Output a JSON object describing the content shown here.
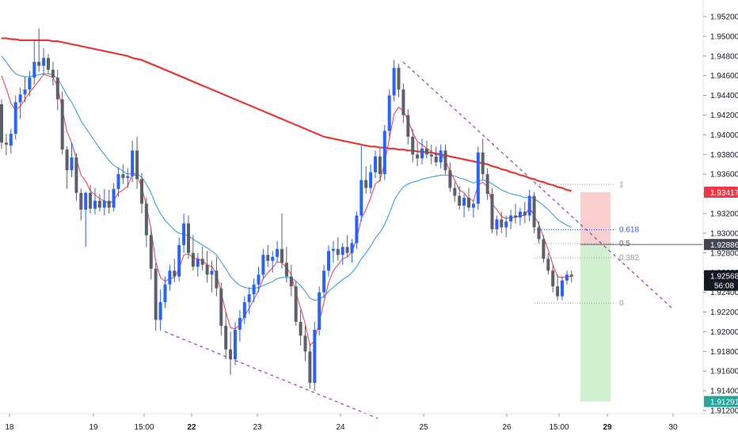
{
  "chart_data": {
    "type": "candlestick",
    "x_tick_labels": [
      "18",
      "19",
      "15:00",
      "22",
      "23",
      "24",
      "25",
      "26",
      "15:00",
      "29",
      "30"
    ],
    "x_tick_bold": [
      false,
      false,
      false,
      true,
      false,
      false,
      false,
      false,
      false,
      true,
      false
    ],
    "y_tick_labels": [
      "1.95200",
      "1.95000",
      "1.94800",
      "1.94600",
      "1.94400",
      "1.94200",
      "1.94000",
      "1.93800",
      "1.93600",
      "1.93400",
      "1.93200",
      "1.93000",
      "1.92800",
      "1.92600",
      "1.92400",
      "1.92200",
      "1.92000",
      "1.91800",
      "1.91600",
      "1.91400",
      "1.91200"
    ],
    "ylim": [
      1.9115,
      1.9535
    ],
    "grid": false,
    "colors": {
      "up": "#2962ff",
      "down": "#5d606b",
      "ma_fast": "#f23645",
      "ma_mid": "#2196f3",
      "ma_slow": "#f23645",
      "trendline": "#9c27b0",
      "risk_zone": "#f7c5c5",
      "reward_zone": "#c9edc7",
      "fib": "#9598a1",
      "fib_618": "#2962ff"
    },
    "candles_ohlc": [
      [
        1.9431,
        1.9436,
        1.9386,
        1.9392
      ],
      [
        1.9392,
        1.9401,
        1.9379,
        1.939
      ],
      [
        1.9389,
        1.9406,
        1.9381,
        1.9401
      ],
      [
        1.9401,
        1.944,
        1.9395,
        1.9433
      ],
      [
        1.9433,
        1.9448,
        1.9416,
        1.9441
      ],
      [
        1.9441,
        1.9459,
        1.9433,
        1.9446
      ],
      [
        1.9446,
        1.9465,
        1.9439,
        1.9458
      ],
      [
        1.9458,
        1.9495,
        1.9451,
        1.9474
      ],
      [
        1.9474,
        1.9508,
        1.9464,
        1.947
      ],
      [
        1.947,
        1.9488,
        1.9461,
        1.9478
      ],
      [
        1.9478,
        1.9482,
        1.9462,
        1.9466
      ],
      [
        1.9466,
        1.9474,
        1.945,
        1.9458
      ],
      [
        1.9458,
        1.9466,
        1.9425,
        1.9436
      ],
      [
        1.9436,
        1.9444,
        1.938,
        1.9385
      ],
      [
        1.9385,
        1.9388,
        1.9345,
        1.9364
      ],
      [
        1.9364,
        1.9392,
        1.9357,
        1.9377
      ],
      [
        1.9377,
        1.9381,
        1.9333,
        1.9341
      ],
      [
        1.9341,
        1.9345,
        1.9313,
        1.9324
      ],
      [
        1.9324,
        1.9342,
        1.9286,
        1.9341
      ],
      [
        1.9341,
        1.9349,
        1.932,
        1.9325
      ],
      [
        1.9325,
        1.9346,
        1.9319,
        1.9333
      ],
      [
        1.9333,
        1.934,
        1.9322,
        1.9326
      ],
      [
        1.9326,
        1.9345,
        1.9318,
        1.9333
      ],
      [
        1.9333,
        1.9344,
        1.932,
        1.9326
      ],
      [
        1.9326,
        1.9351,
        1.9322,
        1.9345
      ],
      [
        1.9345,
        1.9367,
        1.9337,
        1.936
      ],
      [
        1.936,
        1.937,
        1.935,
        1.9356
      ],
      [
        1.9356,
        1.9366,
        1.9346,
        1.9358
      ],
      [
        1.9358,
        1.9394,
        1.9352,
        1.9384
      ],
      [
        1.9384,
        1.9398,
        1.9345,
        1.9355
      ],
      [
        1.9355,
        1.9361,
        1.932,
        1.933
      ],
      [
        1.933,
        1.9336,
        1.9286,
        1.9298
      ],
      [
        1.9298,
        1.9305,
        1.9253,
        1.9264
      ],
      [
        1.9264,
        1.927,
        1.9201,
        1.9212
      ],
      [
        1.9212,
        1.9243,
        1.9201,
        1.923
      ],
      [
        1.923,
        1.9256,
        1.9224,
        1.9248
      ],
      [
        1.9248,
        1.9268,
        1.9242,
        1.9262
      ],
      [
        1.9262,
        1.9274,
        1.925,
        1.9256
      ],
      [
        1.9256,
        1.9296,
        1.9251,
        1.9288
      ],
      [
        1.9288,
        1.932,
        1.928,
        1.931
      ],
      [
        1.931,
        1.9318,
        1.9274,
        1.928
      ],
      [
        1.928,
        1.9298,
        1.9262,
        1.9266
      ],
      [
        1.9266,
        1.928,
        1.9256,
        1.9274
      ],
      [
        1.9274,
        1.9286,
        1.9262,
        1.9268
      ],
      [
        1.9268,
        1.9282,
        1.925,
        1.9258
      ],
      [
        1.9258,
        1.9272,
        1.924,
        1.9262
      ],
      [
        1.9262,
        1.9276,
        1.9236,
        1.9244
      ],
      [
        1.9244,
        1.925,
        1.9196,
        1.9206
      ],
      [
        1.9206,
        1.922,
        1.9172,
        1.9182
      ],
      [
        1.9182,
        1.92,
        1.9156,
        1.9172
      ],
      [
        1.9172,
        1.921,
        1.9166,
        1.9202
      ],
      [
        1.9202,
        1.9222,
        1.919,
        1.9214
      ],
      [
        1.9214,
        1.9236,
        1.9208,
        1.923
      ],
      [
        1.923,
        1.9245,
        1.9218,
        1.9238
      ],
      [
        1.9238,
        1.9254,
        1.923,
        1.9248
      ],
      [
        1.9248,
        1.9266,
        1.924,
        1.9258
      ],
      [
        1.9258,
        1.9284,
        1.9254,
        1.9278
      ],
      [
        1.9278,
        1.9288,
        1.9266,
        1.9272
      ],
      [
        1.9272,
        1.9282,
        1.926,
        1.9276
      ],
      [
        1.9276,
        1.9292,
        1.927,
        1.9284
      ],
      [
        1.9284,
        1.932,
        1.9264,
        1.927
      ],
      [
        1.927,
        1.9286,
        1.925,
        1.9256
      ],
      [
        1.9256,
        1.9268,
        1.9236,
        1.9246
      ],
      [
        1.9246,
        1.9252,
        1.9206,
        1.921
      ],
      [
        1.921,
        1.9222,
        1.9186,
        1.9196
      ],
      [
        1.9196,
        1.9206,
        1.917,
        1.918
      ],
      [
        1.918,
        1.9188,
        1.9142,
        1.9148
      ],
      [
        1.9148,
        1.921,
        1.914,
        1.9202
      ],
      [
        1.9202,
        1.9246,
        1.9196,
        1.924
      ],
      [
        1.924,
        1.9268,
        1.9234,
        1.9262
      ],
      [
        1.9262,
        1.9288,
        1.9256,
        1.9282
      ],
      [
        1.9282,
        1.9292,
        1.927,
        1.9284
      ],
      [
        1.9284,
        1.9296,
        1.9272,
        1.9278
      ],
      [
        1.9278,
        1.929,
        1.9268,
        1.9286
      ],
      [
        1.9286,
        1.9298,
        1.9276,
        1.928
      ],
      [
        1.928,
        1.9294,
        1.927,
        1.929
      ],
      [
        1.929,
        1.9322,
        1.9284,
        1.9318
      ],
      [
        1.9318,
        1.939,
        1.9312,
        1.9354
      ],
      [
        1.9354,
        1.9368,
        1.934,
        1.9346
      ],
      [
        1.9346,
        1.937,
        1.934,
        1.9362
      ],
      [
        1.9362,
        1.9384,
        1.9356,
        1.9378
      ],
      [
        1.9378,
        1.9386,
        1.9352,
        1.936
      ],
      [
        1.936,
        1.941,
        1.9354,
        1.9404
      ],
      [
        1.9404,
        1.9446,
        1.9398,
        1.944
      ],
      [
        1.944,
        1.9476,
        1.9434,
        1.9468
      ],
      [
        1.9468,
        1.9472,
        1.9438,
        1.9446
      ],
      [
        1.9446,
        1.9452,
        1.9412,
        1.942
      ],
      [
        1.942,
        1.9426,
        1.939,
        1.9398
      ],
      [
        1.9398,
        1.9406,
        1.9372,
        1.938
      ],
      [
        1.938,
        1.9392,
        1.9368,
        1.9376
      ],
      [
        1.9376,
        1.9396,
        1.937,
        1.9386
      ],
      [
        1.9386,
        1.9394,
        1.9376,
        1.938
      ],
      [
        1.938,
        1.939,
        1.937,
        1.9378
      ],
      [
        1.9378,
        1.9388,
        1.9368,
        1.9372
      ],
      [
        1.9372,
        1.939,
        1.9366,
        1.9384
      ],
      [
        1.9384,
        1.939,
        1.936,
        1.9364
      ],
      [
        1.9364,
        1.9372,
        1.9342,
        1.9346
      ],
      [
        1.9346,
        1.9352,
        1.9332,
        1.9338
      ],
      [
        1.9338,
        1.9348,
        1.9324,
        1.9328
      ],
      [
        1.9328,
        1.934,
        1.9316,
        1.9336
      ],
      [
        1.9336,
        1.9346,
        1.9322,
        1.9326
      ],
      [
        1.9326,
        1.9334,
        1.9316,
        1.933
      ],
      [
        1.933,
        1.9388,
        1.9324,
        1.9382
      ],
      [
        1.9382,
        1.9396,
        1.9354,
        1.936
      ],
      [
        1.936,
        1.9366,
        1.9334,
        1.934
      ],
      [
        1.934,
        1.9346,
        1.93,
        1.9304
      ],
      [
        1.9304,
        1.9318,
        1.9298,
        1.9314
      ],
      [
        1.9314,
        1.9322,
        1.93,
        1.9306
      ],
      [
        1.9306,
        1.9318,
        1.9296,
        1.9312
      ],
      [
        1.9312,
        1.9324,
        1.9304,
        1.9318
      ],
      [
        1.9318,
        1.933,
        1.931,
        1.9316
      ],
      [
        1.9316,
        1.9326,
        1.9308,
        1.9322
      ],
      [
        1.9322,
        1.9332,
        1.931,
        1.9318
      ],
      [
        1.9318,
        1.9344,
        1.9312,
        1.9338
      ],
      [
        1.9338,
        1.9342,
        1.93,
        1.9306
      ],
      [
        1.9306,
        1.9312,
        1.929,
        1.9294
      ],
      [
        1.9294,
        1.9298,
        1.927,
        1.9274
      ],
      [
        1.9274,
        1.928,
        1.9258,
        1.9262
      ],
      [
        1.9262,
        1.9268,
        1.924,
        1.9246
      ],
      [
        1.9246,
        1.9258,
        1.9232,
        1.9236
      ],
      [
        1.9236,
        1.9256,
        1.9232,
        1.9252
      ],
      [
        1.9252,
        1.9262,
        1.9248,
        1.9258
      ],
      [
        1.9258,
        1.9262,
        1.925,
        1.9256
      ]
    ],
    "ma_fast": [
      1.946,
      1.9447,
      1.9432,
      1.9425,
      1.9429,
      1.9436,
      1.9443,
      1.9449,
      1.9455,
      1.9461,
      1.946,
      1.9458,
      1.9449,
      1.9426,
      1.9403,
      1.9392,
      1.9376,
      1.9359,
      1.9353,
      1.9343,
      1.9339,
      1.9335,
      1.9333,
      1.933,
      1.9333,
      1.9341,
      1.9344,
      1.9348,
      1.936,
      1.9358,
      1.9347,
      1.9328,
      1.9304,
      1.9271,
      1.9255,
      1.9251,
      1.9254,
      1.9255,
      1.9264,
      1.9278,
      1.9279,
      1.9275,
      1.9274,
      1.9272,
      1.9268,
      1.9266,
      1.9259,
      1.924,
      1.922,
      1.9204,
      1.9203,
      1.9207,
      1.9216,
      1.9224,
      1.9233,
      1.9242,
      1.9254,
      1.926,
      1.9265,
      1.9271,
      1.927,
      1.9265,
      1.9258,
      1.924,
      1.9224,
      1.9208,
      1.9186,
      1.9191,
      1.921,
      1.923,
      1.925,
      1.9262,
      1.9268,
      1.9274,
      1.9276,
      1.9281,
      1.9294,
      1.9315,
      1.9324,
      1.9336,
      1.935,
      1.9354,
      1.9372,
      1.9396,
      1.9421,
      1.9428,
      1.9424,
      1.9415,
      1.9402,
      1.9393,
      1.939,
      1.9386,
      1.9383,
      1.9379,
      1.9381,
      1.9374,
      1.9363,
      1.9354,
      1.9344,
      1.9341,
      1.9335,
      1.9333,
      1.9349,
      1.9352,
      1.9347,
      1.933,
      1.9324,
      1.9317,
      1.9315,
      1.9316,
      1.9316,
      1.9318,
      1.9318,
      1.9326,
      1.9318,
      1.9309,
      1.9296,
      1.9283,
      1.9268,
      1.9256,
      1.9255,
      1.9256,
      1.9256
    ],
    "ma_mid": [
      1.948,
      1.9474,
      1.9467,
      1.9462,
      1.946,
      1.9459,
      1.9459,
      1.946,
      1.9461,
      1.9462,
      1.9462,
      1.9461,
      1.9457,
      1.9449,
      1.944,
      1.9433,
      1.9424,
      1.9414,
      1.9407,
      1.94,
      1.9393,
      1.9386,
      1.938,
      1.9374,
      1.9369,
      1.9366,
      1.9363,
      1.936,
      1.9361,
      1.936,
      1.9357,
      1.935,
      1.9341,
      1.9329,
      1.932,
      1.9313,
      1.9308,
      1.9303,
      1.93,
      1.9299,
      1.9297,
      1.9294,
      1.9291,
      1.9288,
      1.9285,
      1.9282,
      1.9278,
      1.9271,
      1.9264,
      1.9256,
      1.9251,
      1.9247,
      1.9245,
      1.9244,
      1.9244,
      1.9245,
      1.9247,
      1.9249,
      1.9251,
      1.9254,
      1.9255,
      1.9255,
      1.9255,
      1.9251,
      1.9247,
      1.9241,
      1.9234,
      1.9232,
      1.9233,
      1.9236,
      1.9241,
      1.9245,
      1.9249,
      1.9253,
      1.9256,
      1.926,
      1.9266,
      1.9274,
      1.928,
      1.9287,
      1.9295,
      1.9301,
      1.9309,
      1.932,
      1.9333,
      1.9341,
      1.9347,
      1.935,
      1.9352,
      1.9353,
      1.9355,
      1.9356,
      1.9357,
      1.9358,
      1.9359,
      1.9359,
      1.9359,
      1.9358,
      1.9356,
      1.9355,
      1.9353,
      1.9351,
      1.9353,
      1.9354,
      1.9353,
      1.935,
      1.9347,
      1.9344,
      1.9342,
      1.934,
      1.9339,
      1.9338,
      1.9336,
      1.9337,
      1.9335,
      1.9332,
      1.9328,
      1.9324,
      1.9319,
      1.9314,
      1.9311,
      1.9308,
      1.9306
    ],
    "ma_slow": [
      1.9498,
      1.9498,
      1.9497,
      1.9497,
      1.9496,
      1.9496,
      1.9496,
      1.9496,
      1.9496,
      1.9496,
      1.9496,
      1.9495,
      1.9495,
      1.9494,
      1.9493,
      1.9492,
      1.9491,
      1.949,
      1.9489,
      1.9488,
      1.9487,
      1.9486,
      1.9485,
      1.9484,
      1.9483,
      1.9482,
      1.9481,
      1.948,
      1.9478,
      1.9477,
      1.9476,
      1.9474,
      1.9472,
      1.947,
      1.9468,
      1.9466,
      1.9464,
      1.9462,
      1.946,
      1.9458,
      1.9456,
      1.9454,
      1.9452,
      1.945,
      1.9448,
      1.9446,
      1.9444,
      1.9442,
      1.944,
      1.9438,
      1.9436,
      1.9434,
      1.9432,
      1.943,
      1.9428,
      1.9426,
      1.9424,
      1.9422,
      1.942,
      1.9418,
      1.9416,
      1.9414,
      1.9412,
      1.941,
      1.9408,
      1.9406,
      1.9404,
      1.9402,
      1.94,
      1.9398,
      1.9397,
      1.9396,
      1.9395,
      1.9394,
      1.9393,
      1.9392,
      1.9391,
      1.939,
      1.9389,
      1.9388,
      1.9388,
      1.9387,
      1.9387,
      1.9386,
      1.9386,
      1.9385,
      1.9385,
      1.9384,
      1.9384,
      1.9383,
      1.9383,
      1.9382,
      1.9382,
      1.9381,
      1.938,
      1.9379,
      1.9378,
      1.9377,
      1.9376,
      1.9375,
      1.9374,
      1.9373,
      1.9372,
      1.9371,
      1.937,
      1.9368,
      1.9367,
      1.9365,
      1.9364,
      1.9362,
      1.9361,
      1.9359,
      1.9358,
      1.9356,
      1.9355,
      1.9353,
      1.9352,
      1.935,
      1.9349,
      1.9347,
      1.9346,
      1.9344,
      1.9343
    ],
    "trendlines": [
      {
        "from": [
          1.9474,
          101
        ],
        "to": [
          1.9223,
          170
        ],
        "from_idx": 85,
        "to_idx": 142
      },
      {
        "from": [
          1.92,
          35
        ],
        "to": [
          1.9112,
          78
        ],
        "from_idx": 33,
        "to_idx": 78
      }
    ],
    "fib_levels": [
      {
        "label": "1",
        "value": 1.93495
      },
      {
        "label": "0.618",
        "value": 1.93035
      },
      {
        "label": "0.5",
        "value": 1.92895
      },
      {
        "label": "0.382",
        "value": 1.9275
      },
      {
        "label": "0",
        "value": 1.9229
      }
    ],
    "position": {
      "entry": 1.92886,
      "stop": 1.93417,
      "target": 1.91291
    },
    "price_badges": [
      {
        "text": "1.93417",
        "value": 1.93417,
        "color": "#f23645"
      },
      {
        "text": "1.92886",
        "value": 1.92886,
        "color": "#434651"
      },
      {
        "text": "1.92568",
        "value": 1.92568,
        "color": "#131722",
        "sub": "56:08"
      },
      {
        "text": "1.91291",
        "value": 1.91291,
        "color": "#26a69a"
      }
    ]
  }
}
